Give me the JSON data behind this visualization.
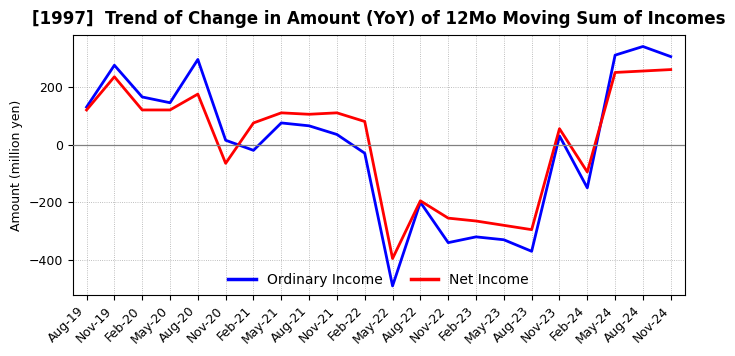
{
  "title": "[1997]  Trend of Change in Amount (YoY) of 12Mo Moving Sum of Incomes",
  "ylabel": "Amount (million yen)",
  "x_labels": [
    "Aug-19",
    "Nov-19",
    "Feb-20",
    "May-20",
    "Aug-20",
    "Nov-20",
    "Feb-21",
    "May-21",
    "Aug-21",
    "Nov-21",
    "Feb-22",
    "May-22",
    "Aug-22",
    "Nov-22",
    "Feb-23",
    "May-23",
    "Aug-23",
    "Nov-23",
    "Feb-24",
    "May-24",
    "Aug-24",
    "Nov-24"
  ],
  "ordinary_income": [
    130,
    275,
    165,
    145,
    295,
    15,
    -20,
    75,
    65,
    35,
    -30,
    -490,
    -200,
    -340,
    -320,
    -330,
    -370,
    30,
    -150,
    310,
    340,
    305
  ],
  "net_income": [
    120,
    235,
    120,
    120,
    175,
    -65,
    75,
    110,
    105,
    110,
    80,
    -395,
    -195,
    -255,
    -265,
    -280,
    -295,
    55,
    -95,
    250,
    255,
    260
  ],
  "ordinary_color": "#0000FF",
  "net_color": "#FF0000",
  "ylim": [
    -520,
    380
  ],
  "yticks": [
    -400,
    -200,
    0,
    200
  ],
  "grid_color": "#aaaaaa",
  "background_color": "#ffffff",
  "title_fontsize": 12,
  "tick_fontsize": 9,
  "legend_labels": [
    "Ordinary Income",
    "Net Income"
  ]
}
